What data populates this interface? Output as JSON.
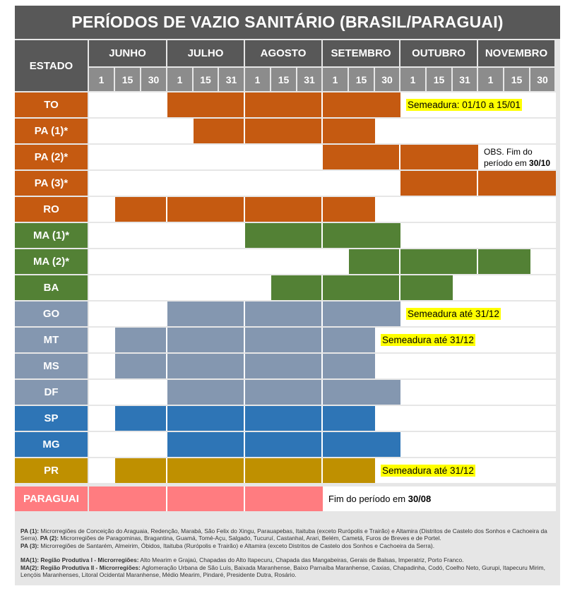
{
  "title": "PERÍODOS DE VAZIO SANITÁRIO (BRASIL/PARAGUAI)",
  "header": {
    "estado": "ESTADO",
    "months": [
      "JUNHO",
      "JULHO",
      "AGOSTO",
      "SETEMBRO",
      "OUTUBRO",
      "NOVEMBRO"
    ],
    "days": [
      "1",
      "15",
      "30",
      "1",
      "15",
      "31",
      "1",
      "15",
      "31",
      "1",
      "15",
      "30",
      "1",
      "15",
      "31",
      "1",
      "15",
      "30"
    ]
  },
  "colors": {
    "orange": "#c55a11",
    "green": "#538135",
    "gray": "#8497b0",
    "blue": "#2e75b6",
    "gold": "#bf9000",
    "pink": "#ff7c80"
  },
  "rows": [
    {
      "label": "TO",
      "color": "orange",
      "start": 3,
      "end": 12,
      "note": "Semeadura: 01/10 a 15/01",
      "note_highlight": true
    },
    {
      "label": "PA (1)*",
      "color": "orange",
      "start": 4,
      "end": 11,
      "note": "",
      "note_highlight": false
    },
    {
      "label": "PA (2)*",
      "color": "orange",
      "start": 9,
      "end": 15,
      "note": "OBS. Fim do período em ",
      "note_bold": "30/10",
      "note_highlight": false
    },
    {
      "label": "PA (3)*",
      "color": "orange",
      "start": 12,
      "end": 18,
      "note": "",
      "note_highlight": false
    },
    {
      "label": "RO",
      "color": "orange",
      "start": 1,
      "end": 11,
      "note": "",
      "note_highlight": false
    },
    {
      "label": "MA (1)*",
      "color": "green",
      "start": 6,
      "end": 12,
      "note": "",
      "note_highlight": false
    },
    {
      "label": "MA (2)*",
      "color": "green",
      "start": 10,
      "end": 17,
      "note": "",
      "note_highlight": false
    },
    {
      "label": "BA",
      "color": "green",
      "start": 7,
      "end": 14,
      "note": "",
      "note_highlight": false
    },
    {
      "label": "GO",
      "color": "gray",
      "start": 3,
      "end": 12,
      "note": "Semeadura até 31/12",
      "note_highlight": true
    },
    {
      "label": "MT",
      "color": "gray",
      "start": 1,
      "end": 11,
      "note": "Semeadura até 31/12",
      "note_highlight": true
    },
    {
      "label": "MS",
      "color": "gray",
      "start": 1,
      "end": 11,
      "note": "",
      "note_highlight": false
    },
    {
      "label": "DF",
      "color": "gray",
      "start": 3,
      "end": 12,
      "note": "",
      "note_highlight": false
    },
    {
      "label": "SP",
      "color": "blue",
      "start": 1,
      "end": 11,
      "note": "",
      "note_highlight": false
    },
    {
      "label": "MG",
      "color": "blue",
      "start": 3,
      "end": 12,
      "note": "",
      "note_highlight": false
    },
    {
      "label": "PR",
      "color": "gold",
      "start": 1,
      "end": 11,
      "note": "Semeadura até 31/12",
      "note_highlight": true
    },
    {
      "label": "PARAGUAI",
      "color": "pink",
      "start": 0,
      "end": 9,
      "note": "Fim do período em ",
      "note_bold": "30/08",
      "note_highlight": false
    }
  ],
  "footnotes": {
    "pa1_label": "PA (1):",
    "pa1_text": " Microrregiões de Conceição do Araguaia, Redenção, Marabá, São Felix do Xingu, Parauapebas, Itaituba (exceto Rurópolis e Trairão) e Altamira (Distritos de Castelo dos Sonhos e Cachoeira da Serra).",
    "pa2_label": " PA (2):",
    "pa2_text": " Microrregiões de Paragominas, Bragantina, Guamá, Tomé-Açu, Salgado, Tucuruí, Castanhal, Arari, Belém, Cametá, Furos de Breves e de Portel.",
    "pa3_label": "PA (3):",
    "pa3_text": " Microrregiões de Santarém, Almeirim, Óbidos, Itaituba (Rurópolis e Trairão) e Altamira (exceto Distritos de Castelo dos Sonhos e Cachoeira da Serra).",
    "ma1_label": "MA(1): Região Produtiva I - Microrregiões:",
    "ma1_text": " Alto Mearim e Grajaú, Chapadas do Alto Itapecuru, Chapada das Mangabeiras, Gerais de Balsas, Imperatriz, Porto Franco.",
    "ma2_label": "MA(2): Região Produtiva II - Microrregiões:",
    "ma2_text": " Aglomeração Urbana de São Luís, Baixada Maranhense, Baixo Parnaíba Maranhense, Caxias, Chapadinha, Codó, Coelho Neto, Gurupi, Itapecuru Mirim, Lençóis Maranhenses, Litoral Ocidental Maranhense, Médio Mearim, Pindaré, Presidente Dutra, Rosário."
  }
}
